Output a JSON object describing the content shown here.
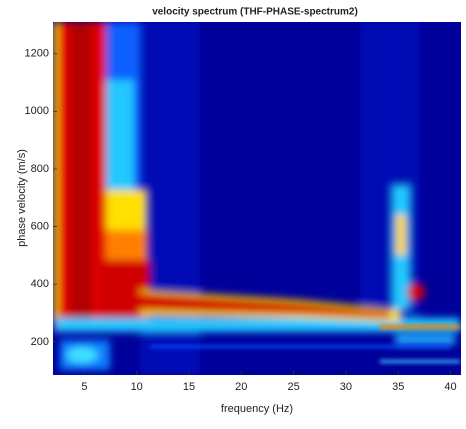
{
  "chart_data": {
    "type": "heatmap",
    "title": "velocity spectrum (THF-PHASE-spectrum2)",
    "x_label": "frequency (Hz)",
    "y_label": "phase velocity (m/s)",
    "xlim": [
      2,
      41
    ],
    "xticks": [
      5,
      10,
      15,
      20,
      25,
      30,
      35,
      40
    ],
    "ylim": [
      85,
      1310
    ],
    "yticks": [
      200,
      400,
      600,
      800,
      1000,
      1200
    ]
  }
}
